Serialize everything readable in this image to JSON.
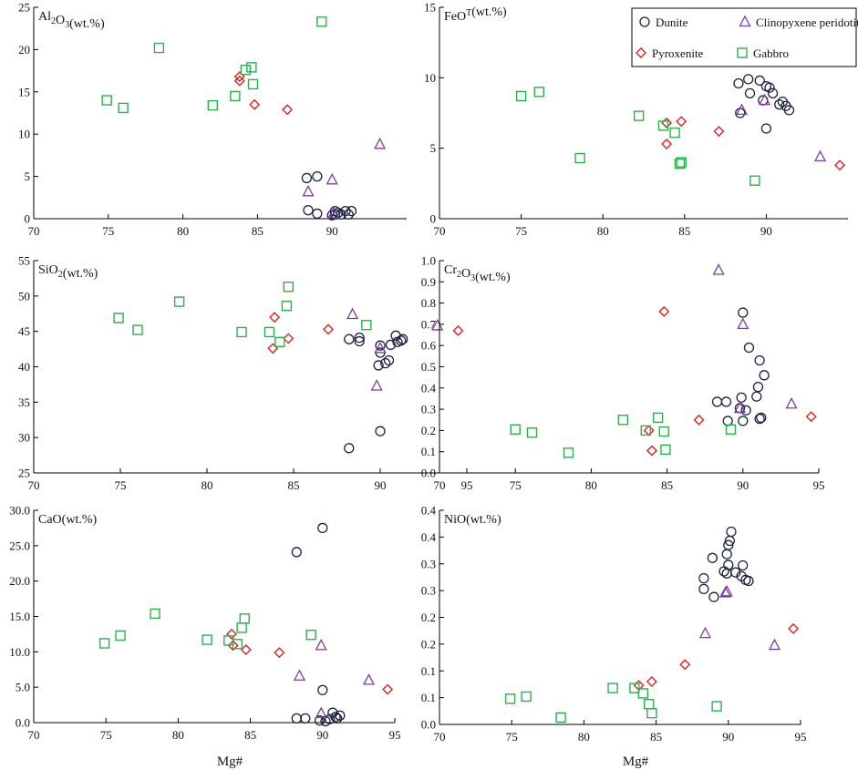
{
  "figure": {
    "xlabel": "Mg#"
  },
  "legend": {
    "entries": [
      {
        "key": "dunite",
        "label": "Dunite",
        "marker": "circle",
        "color": "#1c2340"
      },
      {
        "key": "cpx",
        "label": "Clinopyxene peridotite",
        "marker": "triangle",
        "color": "#7b3fa0"
      },
      {
        "key": "pyroxenite",
        "label": "Pyroxenite",
        "marker": "diamond",
        "color": "#e02020"
      },
      {
        "key": "gabbro",
        "label": "Gabbro",
        "marker": "square",
        "color": "#27b34a"
      }
    ]
  },
  "chart_data": [
    {
      "type": "scatter",
      "title_main": "Al",
      "title_sub1": "2",
      "title_mid": "O",
      "title_sub2": "3",
      "title_end": "(wt.%)",
      "xlabel": "",
      "xlim": [
        70,
        95
      ],
      "xticks": [
        70,
        75,
        80,
        85,
        90
      ],
      "ylim": [
        0,
        25
      ],
      "yticks": [
        0,
        5,
        10,
        15,
        20,
        25
      ],
      "ytick_labels": [
        "0",
        "5",
        "10",
        "15",
        "20",
        "25"
      ],
      "series": [
        {
          "name": "Dunite",
          "points": [
            [
              88.3,
              4.8
            ],
            [
              89.0,
              5.0
            ],
            [
              88.4,
              1.0
            ],
            [
              89.0,
              0.6
            ],
            [
              90.0,
              0.4
            ],
            [
              90.2,
              0.9
            ],
            [
              90.4,
              0.7
            ],
            [
              90.6,
              0.5
            ],
            [
              90.9,
              0.9
            ],
            [
              91.1,
              0.5
            ],
            [
              91.3,
              0.9
            ],
            [
              90.2,
              0.5
            ]
          ]
        },
        {
          "name": "Clinopyxene peridotite",
          "points": [
            [
              88.4,
              3.2
            ],
            [
              90.0,
              4.6
            ],
            [
              93.2,
              8.8
            ],
            [
              90.1,
              0.6
            ]
          ]
        },
        {
          "name": "Pyroxenite",
          "points": [
            [
              83.8,
              16.8
            ],
            [
              83.8,
              16.3
            ],
            [
              84.8,
              13.5
            ],
            [
              87.0,
              12.9
            ]
          ]
        },
        {
          "name": "Gabbro",
          "points": [
            [
              74.9,
              14.0
            ],
            [
              76.0,
              13.1
            ],
            [
              78.4,
              20.2
            ],
            [
              82.0,
              13.4
            ],
            [
              83.5,
              14.5
            ],
            [
              84.2,
              17.6
            ],
            [
              84.6,
              17.9
            ],
            [
              84.7,
              15.9
            ],
            [
              89.3,
              23.3
            ]
          ]
        }
      ]
    },
    {
      "type": "scatter",
      "title_main": "FeO",
      "title_sup": "T",
      "title_end": "(wt.%)",
      "xlabel": "",
      "xlim": [
        70,
        95
      ],
      "xticks": [
        70,
        75,
        80,
        85,
        90
      ],
      "ylim": [
        0,
        15
      ],
      "yticks": [
        0,
        5,
        10,
        15
      ],
      "ytick_labels": [
        "0",
        "5",
        "10",
        "15"
      ],
      "series": [
        {
          "name": "Dunite",
          "points": [
            [
              88.3,
              9.6
            ],
            [
              88.9,
              9.9
            ],
            [
              89.0,
              8.9
            ],
            [
              89.6,
              9.8
            ],
            [
              90.0,
              9.4
            ],
            [
              90.2,
              9.3
            ],
            [
              90.4,
              8.9
            ],
            [
              90.8,
              8.1
            ],
            [
              91.0,
              8.3
            ],
            [
              91.2,
              8.0
            ],
            [
              91.4,
              7.7
            ],
            [
              88.4,
              7.5
            ],
            [
              90.0,
              6.4
            ],
            [
              89.8,
              8.4
            ]
          ]
        },
        {
          "name": "Clinopyxene peridotite",
          "points": [
            [
              88.5,
              7.7
            ],
            [
              89.9,
              8.4
            ],
            [
              93.3,
              4.4
            ]
          ]
        },
        {
          "name": "Pyroxenite",
          "points": [
            [
              83.9,
              6.8
            ],
            [
              84.8,
              6.9
            ],
            [
              83.9,
              5.3
            ],
            [
              87.1,
              6.2
            ],
            [
              94.5,
              3.8
            ]
          ]
        },
        {
          "name": "Gabbro",
          "points": [
            [
              75.0,
              8.7
            ],
            [
              76.1,
              9.0
            ],
            [
              78.6,
              4.3
            ],
            [
              82.2,
              7.3
            ],
            [
              83.7,
              6.6
            ],
            [
              84.4,
              6.1
            ],
            [
              84.7,
              3.9
            ],
            [
              84.8,
              4.0
            ],
            [
              89.3,
              2.7
            ]
          ]
        }
      ]
    },
    {
      "type": "scatter",
      "title_main": "SiO",
      "title_sub1": "2",
      "title_end": "(wt.%)",
      "xlabel": "",
      "xlim": [
        70,
        95
      ],
      "xticks": [
        70,
        75,
        80,
        85,
        90,
        95
      ],
      "ylim": [
        25,
        55
      ],
      "yticks": [
        25,
        30,
        35,
        40,
        45,
        50,
        55
      ],
      "ytick_labels": [
        "25",
        "30",
        "35",
        "40",
        "45",
        "50",
        "55"
      ],
      "series": [
        {
          "name": "Dunite",
          "points": [
            [
              88.2,
              43.9
            ],
            [
              88.8,
              44.1
            ],
            [
              88.8,
              43.6
            ],
            [
              90.0,
              43.0
            ],
            [
              90.6,
              43.1
            ],
            [
              90.9,
              44.4
            ],
            [
              91.0,
              43.5
            ],
            [
              91.2,
              43.7
            ],
            [
              91.3,
              43.9
            ],
            [
              90.0,
              42.0
            ],
            [
              90.3,
              40.5
            ],
            [
              90.5,
              40.9
            ],
            [
              89.9,
              40.2
            ],
            [
              90.0,
              30.9
            ],
            [
              88.2,
              28.5
            ]
          ]
        },
        {
          "name": "Clinopyxene peridotite",
          "points": [
            [
              88.4,
              47.4
            ],
            [
              90.0,
              42.6
            ],
            [
              89.8,
              37.3
            ],
            [
              93.3,
              45.8
            ]
          ]
        },
        {
          "name": "Pyroxenite",
          "points": [
            [
              83.9,
              47.0
            ],
            [
              84.7,
              44.0
            ],
            [
              83.8,
              42.6
            ],
            [
              87.0,
              45.3
            ],
            [
              94.5,
              45.1
            ]
          ]
        },
        {
          "name": "Gabbro",
          "points": [
            [
              74.9,
              46.9
            ],
            [
              76.0,
              45.2
            ],
            [
              78.4,
              49.2
            ],
            [
              82.0,
              44.9
            ],
            [
              83.6,
              44.9
            ],
            [
              84.2,
              43.5
            ],
            [
              84.6,
              48.6
            ],
            [
              84.7,
              51.3
            ],
            [
              89.2,
              45.9
            ]
          ]
        }
      ]
    },
    {
      "type": "scatter",
      "title_main": "Cr",
      "title_sub1": "2",
      "title_mid": "O",
      "title_sub2": "3",
      "title_end": "(wt.%)",
      "xlabel": "",
      "xlim": [
        70,
        95
      ],
      "xticks": [
        70,
        75,
        80,
        85,
        90,
        95
      ],
      "ylim": [
        0,
        1.0
      ],
      "yticks": [
        0,
        0.1,
        0.2,
        0.3,
        0.4,
        0.5,
        0.6,
        0.7,
        0.8,
        0.9,
        1.0
      ],
      "ytick_labels": [
        "0.0",
        "0.1",
        "0.2",
        "0.3",
        "0.4",
        "0.5",
        "0.6",
        "0.7",
        "0.8",
        "0.9",
        "1.0"
      ],
      "series": [
        {
          "name": "Dunite",
          "points": [
            [
              88.3,
              0.335
            ],
            [
              88.9,
              0.335
            ],
            [
              89.0,
              0.245
            ],
            [
              89.9,
              0.355
            ],
            [
              90.0,
              0.245
            ],
            [
              89.8,
              0.305
            ],
            [
              90.2,
              0.295
            ],
            [
              90.0,
              0.755
            ],
            [
              90.4,
              0.59
            ],
            [
              90.9,
              0.36
            ],
            [
              91.0,
              0.405
            ],
            [
              91.1,
              0.53
            ],
            [
              91.2,
              0.26
            ],
            [
              91.4,
              0.46
            ],
            [
              91.1,
              0.255
            ]
          ]
        },
        {
          "name": "Clinopyxene peridotite",
          "points": [
            [
              88.4,
              0.955
            ],
            [
              90.0,
              0.7
            ],
            [
              89.8,
              0.305
            ],
            [
              93.2,
              0.325
            ]
          ]
        },
        {
          "name": "Pyroxenite",
          "points": [
            [
              84.8,
              0.76
            ],
            [
              83.8,
              0.2
            ],
            [
              84.0,
              0.105
            ],
            [
              87.1,
              0.25
            ],
            [
              94.5,
              0.265
            ]
          ]
        },
        {
          "name": "Gabbro",
          "points": [
            [
              75.0,
              0.205
            ],
            [
              76.1,
              0.19
            ],
            [
              78.5,
              0.095
            ],
            [
              82.1,
              0.25
            ],
            [
              83.6,
              0.2
            ],
            [
              84.4,
              0.26
            ],
            [
              84.8,
              0.195
            ],
            [
              84.9,
              0.11
            ],
            [
              89.2,
              0.205
            ]
          ]
        }
      ]
    },
    {
      "type": "scatter",
      "title_main": "CaO",
      "title_end": "(wt.%)",
      "xlabel": "Mg#",
      "xlim": [
        70,
        95
      ],
      "xticks": [
        70,
        75,
        80,
        85,
        90,
        95
      ],
      "ylim": [
        0,
        30
      ],
      "yticks": [
        0,
        5,
        10,
        15,
        20,
        25,
        30
      ],
      "ytick_labels": [
        "0.0",
        "5.0",
        "10.0",
        "15.0",
        "20.0",
        "25.0",
        "30.0"
      ],
      "series": [
        {
          "name": "Dunite",
          "points": [
            [
              88.2,
              24.1
            ],
            [
              90.0,
              27.5
            ],
            [
              90.0,
              4.6
            ],
            [
              88.2,
              0.6
            ],
            [
              88.8,
              0.6
            ],
            [
              89.8,
              0.3
            ],
            [
              90.2,
              0.2
            ],
            [
              90.5,
              0.5
            ],
            [
              90.7,
              1.4
            ],
            [
              91.0,
              0.6
            ],
            [
              91.2,
              1.0
            ],
            [
              90.9,
              0.8
            ]
          ]
        },
        {
          "name": "Clinopyxene peridotite",
          "points": [
            [
              88.4,
              6.6
            ],
            [
              89.9,
              10.9
            ],
            [
              93.2,
              6.0
            ],
            [
              89.9,
              1.3
            ]
          ]
        },
        {
          "name": "Pyroxenite",
          "points": [
            [
              83.7,
              12.5
            ],
            [
              83.8,
              10.9
            ],
            [
              84.7,
              10.3
            ],
            [
              87.0,
              9.9
            ],
            [
              94.5,
              4.7
            ]
          ]
        },
        {
          "name": "Gabbro",
          "points": [
            [
              74.9,
              11.2
            ],
            [
              76.0,
              12.3
            ],
            [
              78.4,
              15.4
            ],
            [
              82.0,
              11.7
            ],
            [
              83.5,
              11.6
            ],
            [
              84.1,
              11.1
            ],
            [
              84.4,
              13.4
            ],
            [
              84.6,
              14.7
            ],
            [
              89.2,
              12.4
            ]
          ]
        }
      ]
    },
    {
      "type": "scatter",
      "title_main": "NiO",
      "title_end": "(wt.%)",
      "xlabel": "Mg#",
      "xlim": [
        70,
        95
      ],
      "xticks": [
        70,
        75,
        80,
        85,
        90,
        95
      ],
      "ylim": [
        0,
        0.4
      ],
      "yticks": [
        0,
        0.05,
        0.1,
        0.15,
        0.2,
        0.25,
        0.3,
        0.35,
        0.4
      ],
      "ytick_labels": [
        "0.0",
        "0.1",
        "0.1",
        "0.2",
        "0.2",
        "0.3",
        "0.3",
        "0.4",
        "0.4"
      ],
      "series": [
        {
          "name": "Dunite",
          "points": [
            [
              88.3,
              0.273
            ],
            [
              88.9,
              0.311
            ],
            [
              88.3,
              0.253
            ],
            [
              89.0,
              0.238
            ],
            [
              89.7,
              0.286
            ],
            [
              89.9,
              0.282
            ],
            [
              90.0,
              0.335
            ],
            [
              90.1,
              0.343
            ],
            [
              90.2,
              0.36
            ],
            [
              89.9,
              0.318
            ],
            [
              90.5,
              0.284
            ],
            [
              90.9,
              0.277
            ],
            [
              91.0,
              0.297
            ],
            [
              91.2,
              0.27
            ],
            [
              91.4,
              0.268
            ],
            [
              90.0,
              0.298
            ]
          ]
        },
        {
          "name": "Clinopyxene peridotite",
          "points": [
            [
              88.4,
              0.17
            ],
            [
              89.9,
              0.248
            ],
            [
              89.8,
              0.246
            ],
            [
              93.2,
              0.148
            ]
          ]
        },
        {
          "name": "Pyroxenite",
          "points": [
            [
              83.8,
              0.073
            ],
            [
              84.7,
              0.08
            ],
            [
              87.0,
              0.112
            ],
            [
              94.5,
              0.179
            ]
          ]
        },
        {
          "name": "Gabbro",
          "points": [
            [
              74.9,
              0.048
            ],
            [
              76.0,
              0.052
            ],
            [
              78.4,
              0.013
            ],
            [
              82.0,
              0.068
            ],
            [
              83.5,
              0.068
            ],
            [
              84.1,
              0.058
            ],
            [
              84.5,
              0.038
            ],
            [
              84.7,
              0.021
            ],
            [
              89.2,
              0.034
            ]
          ]
        }
      ]
    }
  ]
}
